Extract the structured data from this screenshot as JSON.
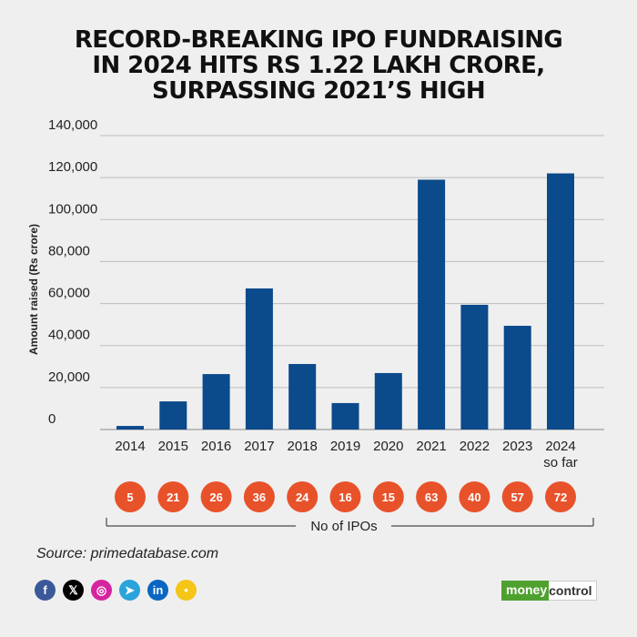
{
  "chart_data": {
    "type": "bar",
    "title": "RECORD-BREAKING IPO FUNDRAISING IN 2024 HITS RS 1.22 LAKH CRORE, SURPASSING 2021'S HIGH",
    "title_lines": [
      "RECORD-BREAKING IPO FUNDRAISING",
      "IN 2024 HITS RS 1.22 LAKH CRORE,",
      "SURPASSING 2021’S HIGH"
    ],
    "xlabel": "",
    "ylabel": "Amount raised (Rs crore)",
    "ylim": [
      0,
      140000
    ],
    "yticks": [
      0,
      20000,
      40000,
      60000,
      80000,
      100000,
      120000,
      140000
    ],
    "ytick_labels": [
      "0",
      "20,000",
      "40,000",
      "60,000",
      "80,000",
      "100,000",
      "120,000",
      "140,000"
    ],
    "grid": true,
    "categories": [
      "2014",
      "2015",
      "2016",
      "2017",
      "2018",
      "2019",
      "2020",
      "2021",
      "2022",
      "2023",
      "2024"
    ],
    "category_labels": [
      [
        "2014"
      ],
      [
        "2015"
      ],
      [
        "2016"
      ],
      [
        "2017"
      ],
      [
        "2018"
      ],
      [
        "2019"
      ],
      [
        "2020"
      ],
      [
        "2021"
      ],
      [
        "2022"
      ],
      [
        "2023"
      ],
      [
        "2024",
        "so far"
      ]
    ],
    "values": [
      1700,
      13400,
      26400,
      67200,
      31200,
      12600,
      26900,
      119000,
      59400,
      49400,
      122000
    ],
    "bar_color": "#0b4a8b",
    "ipo_counts": [
      5,
      21,
      26,
      36,
      24,
      16,
      15,
      63,
      40,
      57,
      72
    ],
    "ipo_count_label": "No of IPOs",
    "ipo_circle_color": "#e8522a"
  },
  "source": "Source: primedatabase.com",
  "socials": [
    {
      "name": "facebook",
      "glyph": "f",
      "color": "#3b5998"
    },
    {
      "name": "x",
      "glyph": "𝕏",
      "color": "#000000"
    },
    {
      "name": "instagram",
      "glyph": "◎",
      "color": "#d6249f"
    },
    {
      "name": "telegram",
      "glyph": "➤",
      "color": "#2aa3db"
    },
    {
      "name": "linkedin",
      "glyph": "in",
      "color": "#0a66c2"
    },
    {
      "name": "koo",
      "glyph": "•",
      "color": "#f5c518"
    }
  ],
  "brand": {
    "part1": "money",
    "part2": "control"
  }
}
